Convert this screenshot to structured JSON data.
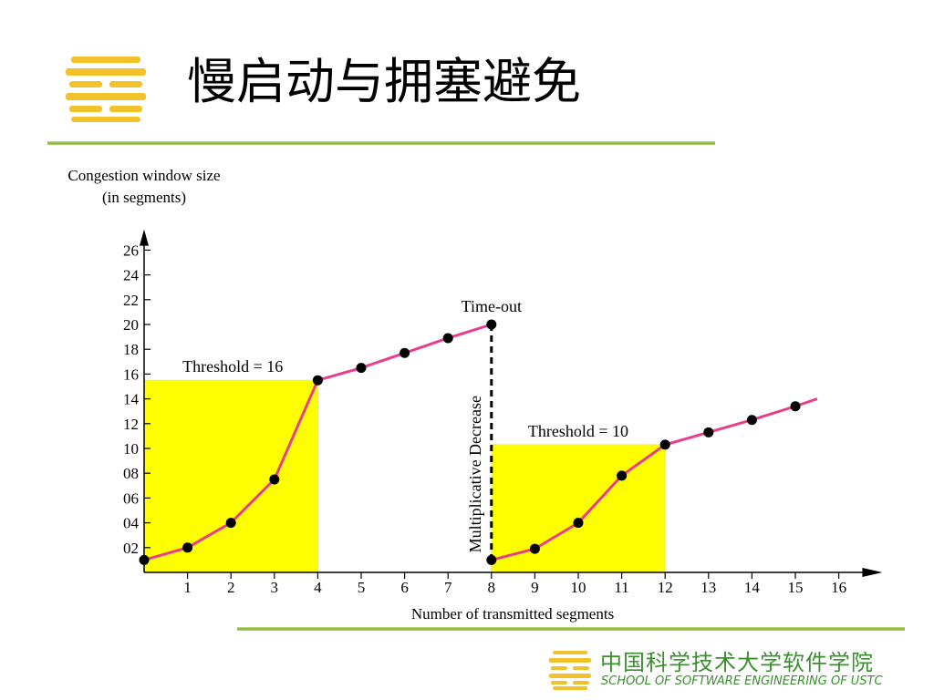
{
  "slide": {
    "title": "慢启动与拥塞避免",
    "footer_cn": "中国科学技术大学软件学院",
    "footer_en": "SCHOOL OF SOFTWARE ENGINEERING OF USTC",
    "accent_color": "#7fb23a",
    "logo_color": "#f3c12c"
  },
  "chart_data": {
    "type": "line",
    "ylabel_line1": "Congestion window size",
    "ylabel_line2": "(in segments)",
    "xlabel": "Number of transmitted segments",
    "x_ticks": [
      "1",
      "2",
      "3",
      "4",
      "5",
      "6",
      "7",
      "8",
      "9",
      "10",
      "11",
      "12",
      "13",
      "14",
      "15",
      "16"
    ],
    "y_ticks": [
      "02",
      "04",
      "06",
      "08",
      "10",
      "12",
      "14",
      "16",
      "18",
      "20",
      "22",
      "24",
      "26"
    ],
    "xlim": [
      0,
      16.5
    ],
    "ylim": [
      0,
      26.5
    ],
    "series_color": "#e83e8c",
    "series": [
      {
        "x": [
          0,
          1,
          2,
          3,
          4,
          5,
          6,
          7,
          8
        ],
        "y": [
          1,
          2,
          4,
          7.5,
          15.5,
          16.5,
          17.7,
          18.9,
          20
        ],
        "points": [
          true,
          true,
          true,
          true,
          true,
          true,
          true,
          true,
          true
        ]
      },
      {
        "x": [
          8,
          9,
          10,
          11,
          12,
          13,
          14,
          15,
          15.5
        ],
        "y": [
          1,
          1.9,
          4,
          7.8,
          10.3,
          11.3,
          12.3,
          13.4,
          14
        ],
        "points": [
          true,
          true,
          true,
          true,
          true,
          true,
          true,
          true,
          false
        ]
      }
    ],
    "threshold_regions": [
      {
        "x0": 0,
        "x1": 4,
        "y": 15.5,
        "label": "Threshold = 16",
        "color": "#ffff00"
      },
      {
        "x0": 8,
        "x1": 12,
        "y": 10.3,
        "label": "Threshold = 10",
        "color": "#ffff00"
      }
    ],
    "timeout": {
      "x": 8,
      "y_top": 20,
      "y_bottom": 1,
      "label": "Time-out",
      "decrease_label": "Multiplicative Decrease"
    }
  }
}
